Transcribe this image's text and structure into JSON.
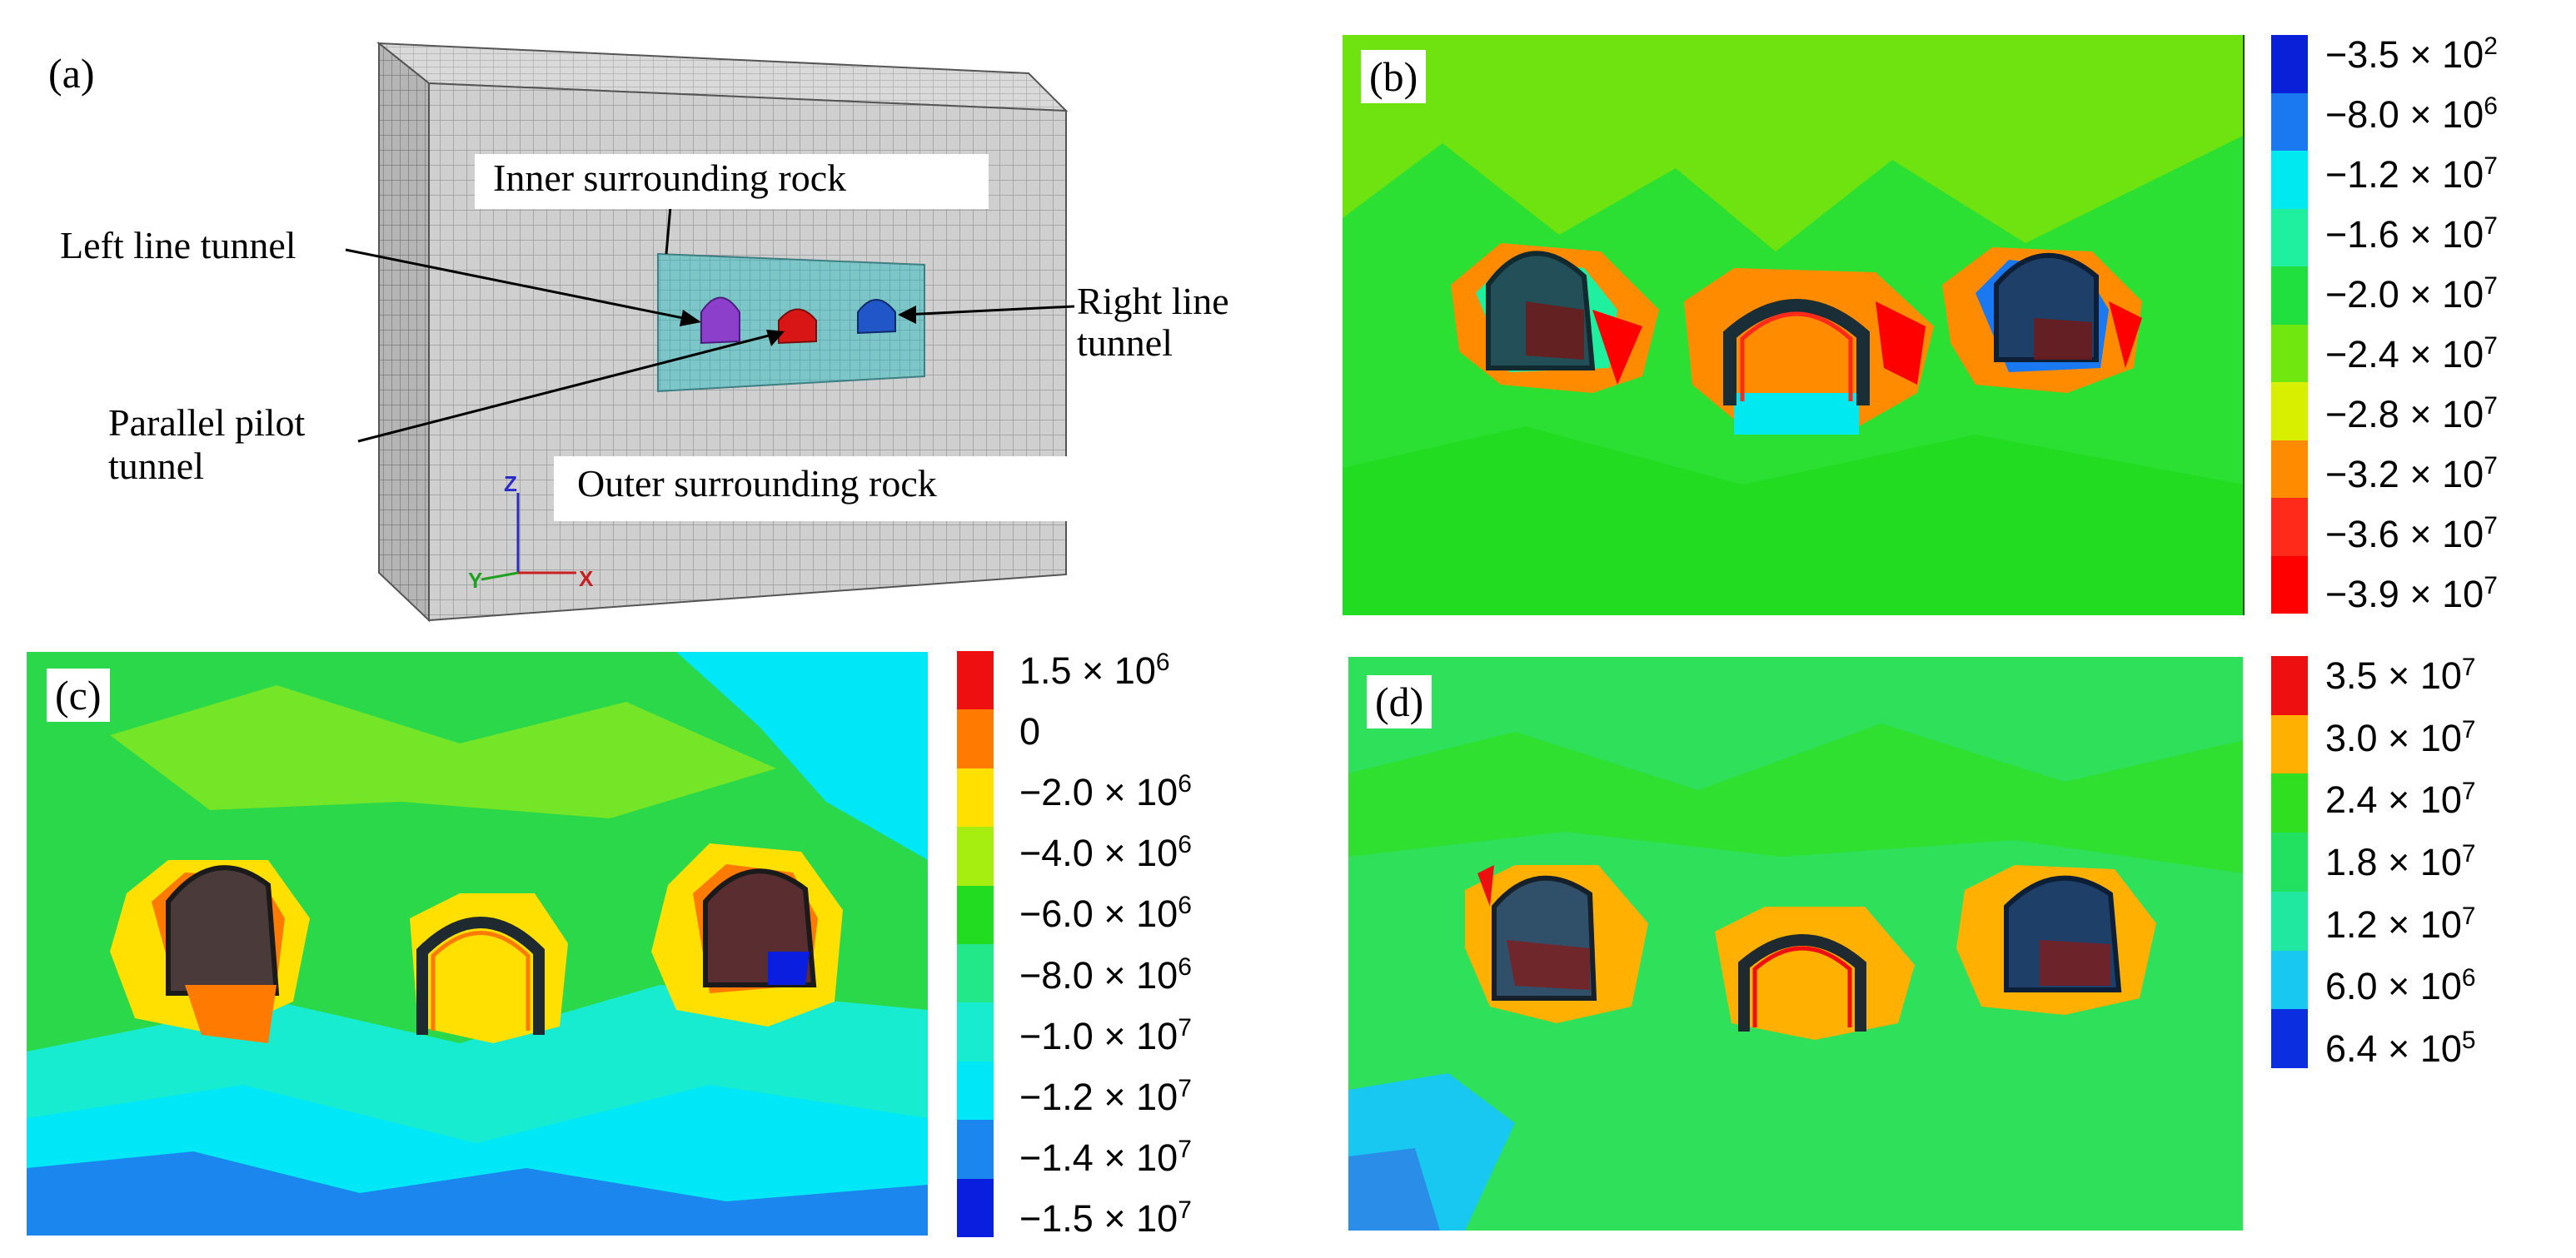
{
  "panel_a": {
    "tag": "(a)",
    "labels": {
      "inner_rock": "Inner surrounding rock",
      "left_tunnel": "Left line tunnel",
      "right_tunnel_line1": "Right line",
      "right_tunnel_line2": "tunnel",
      "pilot_line1": "Parallel pilot",
      "pilot_line2": "tunnel",
      "outer_rock": "Outer surrounding rock"
    },
    "axes": {
      "z": "Z",
      "y": "Y",
      "x": "X"
    },
    "colors": {
      "mesh": "#c9c9c9",
      "inner": "#7fc4c8",
      "left": "#8a3ec9",
      "center": "#d81616",
      "right": "#1f57c8"
    }
  },
  "panel_b": {
    "tag": "(b)",
    "legend": [
      {
        "mantissa": "−3.5 × 10",
        "exp": "2",
        "color": "#0a1fd8"
      },
      {
        "mantissa": "−8.0 × 10",
        "exp": "6",
        "color": "#1a78f0"
      },
      {
        "mantissa": "−1.2 × 10",
        "exp": "7",
        "color": "#00e8f0"
      },
      {
        "mantissa": "−1.6 × 10",
        "exp": "7",
        "color": "#1ef0a0"
      },
      {
        "mantissa": "−2.0 × 10",
        "exp": "7",
        "color": "#20e040"
      },
      {
        "mantissa": "−2.4 × 10",
        "exp": "7",
        "color": "#70e810"
      },
      {
        "mantissa": "−2.8 × 10",
        "exp": "7",
        "color": "#d8f000"
      },
      {
        "mantissa": "−3.2 × 10",
        "exp": "7",
        "color": "#ff8c00"
      },
      {
        "mantissa": "−3.6 × 10",
        "exp": "7",
        "color": "#ff2a1a"
      },
      {
        "mantissa": "−3.9 × 10",
        "exp": "7",
        "color": "#ff0000"
      }
    ],
    "background": "#6fe30f"
  },
  "panel_c": {
    "tag": "(c)",
    "legend": [
      {
        "mantissa": "1.5 × 10",
        "exp": "6",
        "color": "#ee1010"
      },
      {
        "mantissa": "0",
        "exp": "",
        "color": "#ff7a00"
      },
      {
        "mantissa": "−2.0 × 10",
        "exp": "6",
        "color": "#ffe000"
      },
      {
        "mantissa": "−4.0 × 10",
        "exp": "6",
        "color": "#a6ee10"
      },
      {
        "mantissa": "−6.0 × 10",
        "exp": "6",
        "color": "#22dc22"
      },
      {
        "mantissa": "−8.0 × 10",
        "exp": "6",
        "color": "#22e88a"
      },
      {
        "mantissa": "−1.0 × 10",
        "exp": "7",
        "color": "#18ecd0"
      },
      {
        "mantissa": "−1.2 × 10",
        "exp": "7",
        "color": "#00e8f8"
      },
      {
        "mantissa": "−1.4 × 10",
        "exp": "7",
        "color": "#1a86ee"
      },
      {
        "mantissa": "−1.5 × 10",
        "exp": "7",
        "color": "#0a1ee0"
      }
    ],
    "background": "#2ad84a"
  },
  "panel_d": {
    "tag": "(d)",
    "legend": [
      {
        "mantissa": "3.5 × 10",
        "exp": "7",
        "color": "#ee1010"
      },
      {
        "mantissa": "3.0 × 10",
        "exp": "7",
        "color": "#ffb000"
      },
      {
        "mantissa": "2.4 × 10",
        "exp": "7",
        "color": "#30e020"
      },
      {
        "mantissa": "1.8 × 10",
        "exp": "7",
        "color": "#22e060"
      },
      {
        "mantissa": "1.2 × 10",
        "exp": "7",
        "color": "#20e8a0"
      },
      {
        "mantissa": "6.0 × 10",
        "exp": "6",
        "color": "#18c8f0"
      },
      {
        "mantissa": "6.4 × 10",
        "exp": "5",
        "color": "#0a2ee0"
      }
    ],
    "background": "#2ee05a"
  }
}
